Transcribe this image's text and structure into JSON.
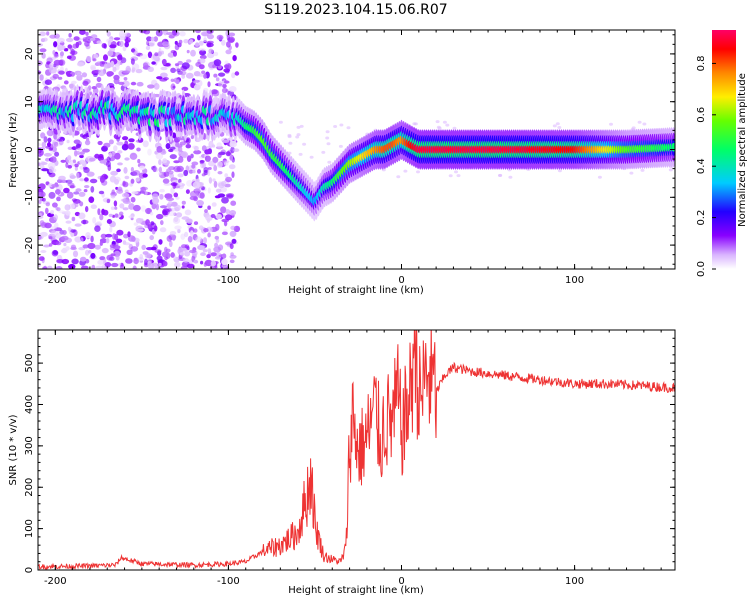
{
  "figure_title": "S119.2023.104.15.06.R07",
  "chart_data": [
    {
      "type": "heatmap",
      "xlabel": "Height of straight line (km)",
      "ylabel": "Frequency (Hz)",
      "xlim": [
        -210,
        158
      ],
      "ylim": [
        -25,
        25
      ],
      "x_ticks": [
        -200,
        -100,
        0,
        100
      ],
      "y_ticks": [
        -20,
        -10,
        0,
        10,
        20
      ],
      "colorbar": {
        "label": "Normalized spectral amplitude",
        "range": [
          0,
          0.93
        ],
        "ticks": [
          0.0,
          0.2,
          0.4,
          0.6,
          0.8
        ],
        "colormap": "rainbow (white-violet-blue-cyan-green-yellow-red-pink)"
      },
      "ridge": {
        "description": "peak frequency trace",
        "x": [
          -208,
          -190,
          -170,
          -150,
          -130,
          -110,
          -100,
          -95,
          -90,
          -85,
          -80,
          -75,
          -70,
          -65,
          -60,
          -55,
          -50,
          -45,
          -40,
          -35,
          -30,
          -25,
          -20,
          -15,
          -10,
          -5,
          0,
          5,
          10,
          30,
          60,
          100,
          130,
          158
        ],
        "y": [
          9,
          8,
          8,
          7,
          7,
          7,
          7,
          7,
          5,
          4,
          2,
          -1,
          -3,
          -5,
          -7,
          -9,
          -11,
          -8,
          -7,
          -5,
          -3,
          -2,
          -1,
          0,
          0,
          1,
          2,
          1,
          0,
          0,
          0,
          0,
          0,
          0.5
        ],
        "peak_amplitude": [
          0.35,
          0.35,
          0.4,
          0.4,
          0.35,
          0.35,
          0.3,
          0.35,
          0.45,
          0.5,
          0.55,
          0.5,
          0.5,
          0.45,
          0.4,
          0.35,
          0.3,
          0.4,
          0.45,
          0.55,
          0.6,
          0.65,
          0.7,
          0.75,
          0.8,
          0.8,
          0.75,
          0.85,
          0.9,
          0.9,
          0.9,
          0.85,
          0.55,
          0.45
        ]
      }
    },
    {
      "type": "line",
      "xlabel": "Height of straight line (km)",
      "ylabel": "SNR (10 * v/v)",
      "xlim": [
        -210,
        158
      ],
      "ylim": [
        0,
        580
      ],
      "x_ticks": [
        -200,
        -100,
        0,
        100
      ],
      "y_ticks": [
        0,
        100,
        200,
        300,
        400,
        500
      ],
      "series": [
        {
          "color": "#ee3333",
          "x": [
            -210,
            -180,
            -165,
            -162,
            -150,
            -120,
            -100,
            -90,
            -80,
            -70,
            -60,
            -55,
            -52,
            -50,
            -45,
            -40,
            -35,
            -32,
            -30,
            -28,
            -25,
            -20,
            -15,
            -12,
            -10,
            -5,
            -2,
            0,
            5,
            8,
            10,
            15,
            20,
            25,
            30,
            35,
            40,
            60,
            80,
            100,
            120,
            140,
            158
          ],
          "y": [
            8,
            10,
            12,
            30,
            15,
            12,
            15,
            20,
            45,
            60,
            90,
            175,
            230,
            110,
            35,
            25,
            20,
            55,
            300,
            380,
            280,
            320,
            390,
            300,
            360,
            360,
            420,
            330,
            420,
            580,
            400,
            480,
            430,
            470,
            490,
            485,
            480,
            470,
            460,
            450,
            450,
            445,
            440
          ]
        }
      ]
    }
  ]
}
